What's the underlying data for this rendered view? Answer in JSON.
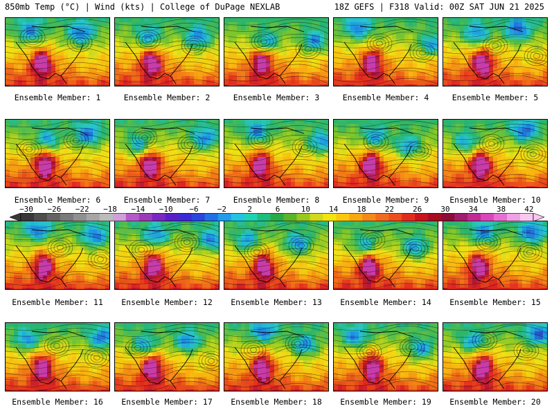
{
  "header": {
    "left": "850mb Temp (°C) | Wind (kts) | College of DuPage NEXLAB",
    "right": "18Z GEFS | F318 Valid: 00Z SAT JUN 21 2025"
  },
  "panels": [
    {
      "label": "Ensemble Member: 1"
    },
    {
      "label": "Ensemble Member: 2"
    },
    {
      "label": "Ensemble Member: 3"
    },
    {
      "label": "Ensemble Member: 4"
    },
    {
      "label": "Ensemble Member: 5"
    },
    {
      "label": "Ensemble Member: 6"
    },
    {
      "label": "Ensemble Member: 7"
    },
    {
      "label": "Ensemble Member: 8"
    },
    {
      "label": "Ensemble Member: 9"
    },
    {
      "label": "Ensemble Member: 10"
    },
    {
      "label": "Ensemble Member: 11"
    },
    {
      "label": "Ensemble Member: 12"
    },
    {
      "label": "Ensemble Member: 13"
    },
    {
      "label": "Ensemble Member: 14"
    },
    {
      "label": "Ensemble Member: 15"
    },
    {
      "label": "Ensemble Member: 16"
    },
    {
      "label": "Ensemble Member: 17"
    },
    {
      "label": "Ensemble Member: 18"
    },
    {
      "label": "Ensemble Member: 19"
    },
    {
      "label": "Ensemble Member: 20"
    }
  ],
  "colorbar": {
    "ticks": [
      "−30",
      "−26",
      "−22",
      "−18",
      "−14",
      "−10",
      "−6",
      "−2",
      "2",
      "6",
      "10",
      "14",
      "18",
      "22",
      "26",
      "30",
      "34",
      "38",
      "42"
    ],
    "colors": [
      "#383838",
      "#4e4e4e",
      "#646464",
      "#7a7a7a",
      "#909090",
      "#a6a6a6",
      "#bcbcbc",
      "#cfa0d8",
      "#b45ac8",
      "#9a3cb8",
      "#7a28c0",
      "#5a1ec8",
      "#3c2ad2",
      "#2a46dc",
      "#2070e6",
      "#209ce8",
      "#22c4e0",
      "#1ed2b4",
      "#1ebe7c",
      "#28aa48",
      "#5ab42c",
      "#96c81e",
      "#d2d81a",
      "#f2e40e",
      "#fac80c",
      "#f8a810",
      "#f48a18",
      "#f06c1c",
      "#ec4e1e",
      "#e02c1e",
      "#c8141c",
      "#a80c20",
      "#8c0c36",
      "#a01c6c",
      "#be2c94",
      "#d848b8",
      "#e670d2",
      "#f0a0e4",
      "#f8c8f0"
    ]
  }
}
